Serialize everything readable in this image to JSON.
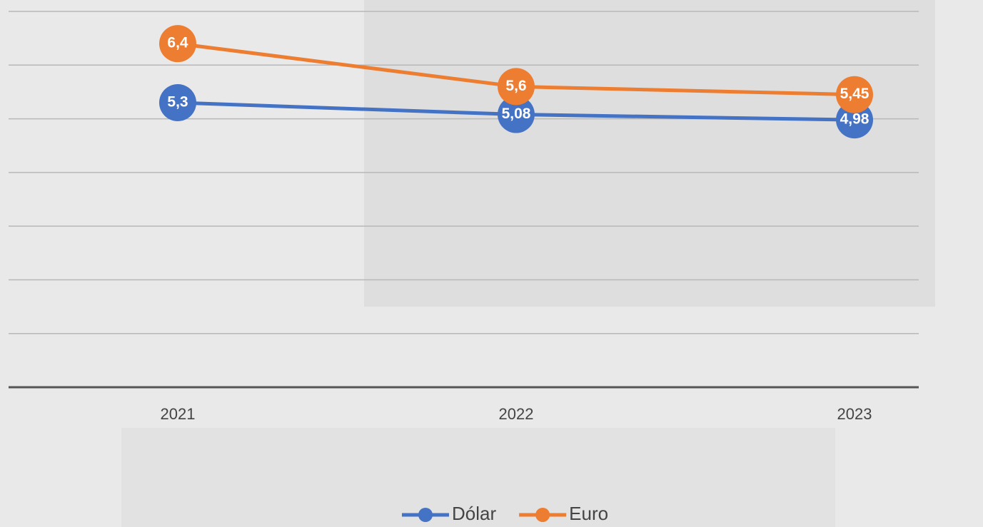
{
  "chart_data": {
    "type": "line",
    "categories": [
      "2021",
      "2022",
      "2023"
    ],
    "series": [
      {
        "name": "Dólar",
        "color": "#4472c4",
        "values": [
          5.3,
          5.08,
          4.98
        ],
        "value_labels": [
          "5,3",
          "5,08",
          "4,98"
        ]
      },
      {
        "name": "Euro",
        "color": "#ed7d31",
        "values": [
          6.4,
          5.6,
          5.45
        ],
        "value_labels": [
          "6,4",
          "5,6",
          "5,45"
        ]
      }
    ],
    "ylim": [
      0,
      7
    ],
    "yticks": [
      0,
      1,
      2,
      3,
      4,
      5,
      6,
      7
    ],
    "grid": true,
    "legend": "bottom"
  }
}
